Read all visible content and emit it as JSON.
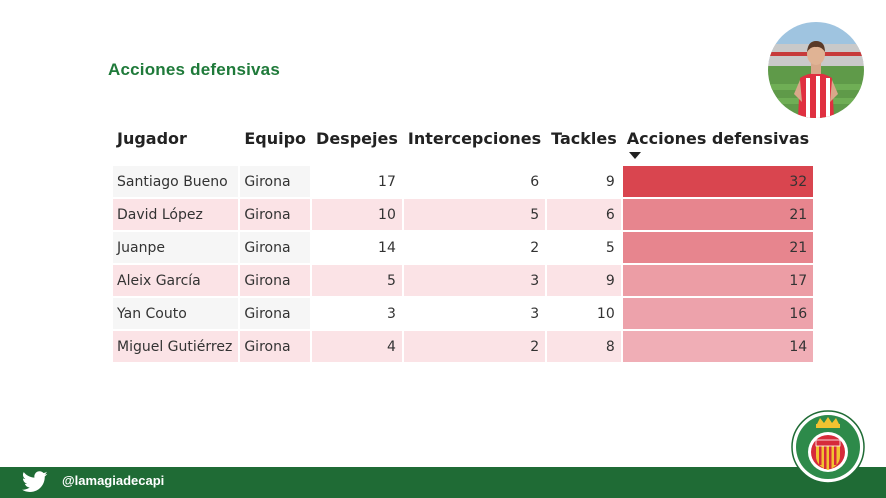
{
  "title": "Acciones defensivas",
  "footer": {
    "handle": "@lamagiadecapi"
  },
  "colors": {
    "brand_green": "#1f7a3a",
    "footer_green": "#1f6b35",
    "heat_max": "#d9454f",
    "heat_min": "#f7e2e4"
  },
  "icons": {
    "footer_icon": "twitter-bird-icon",
    "badge": "girona-fc-crest"
  },
  "table": {
    "headers": [
      "Jugador",
      "Equipo",
      "Despejes",
      "Intercepciones",
      "Tackles",
      "Acciones defensivas"
    ],
    "sorted_column": "Acciones defensivas",
    "sort_direction": "descending",
    "rows": [
      {
        "jugador": "Santiago Bueno",
        "equipo": "Girona",
        "despejes": "17",
        "intercepciones": "6",
        "tackles": "9",
        "acciones": "32"
      },
      {
        "jugador": "David López",
        "equipo": "Girona",
        "despejes": "10",
        "intercepciones": "5",
        "tackles": "6",
        "acciones": "21"
      },
      {
        "jugador": "Juanpe",
        "equipo": "Girona",
        "despejes": "14",
        "intercepciones": "2",
        "tackles": "5",
        "acciones": "21"
      },
      {
        "jugador": "Aleix García",
        "equipo": "Girona",
        "despejes": "5",
        "intercepciones": "3",
        "tackles": "9",
        "acciones": "17"
      },
      {
        "jugador": "Yan Couto",
        "equipo": "Girona",
        "despejes": "3",
        "intercepciones": "3",
        "tackles": "10",
        "acciones": "16"
      },
      {
        "jugador": "Miguel Gutiérrez",
        "equipo": "Girona",
        "despejes": "4",
        "intercepciones": "2",
        "tackles": "8",
        "acciones": "14"
      }
    ]
  }
}
